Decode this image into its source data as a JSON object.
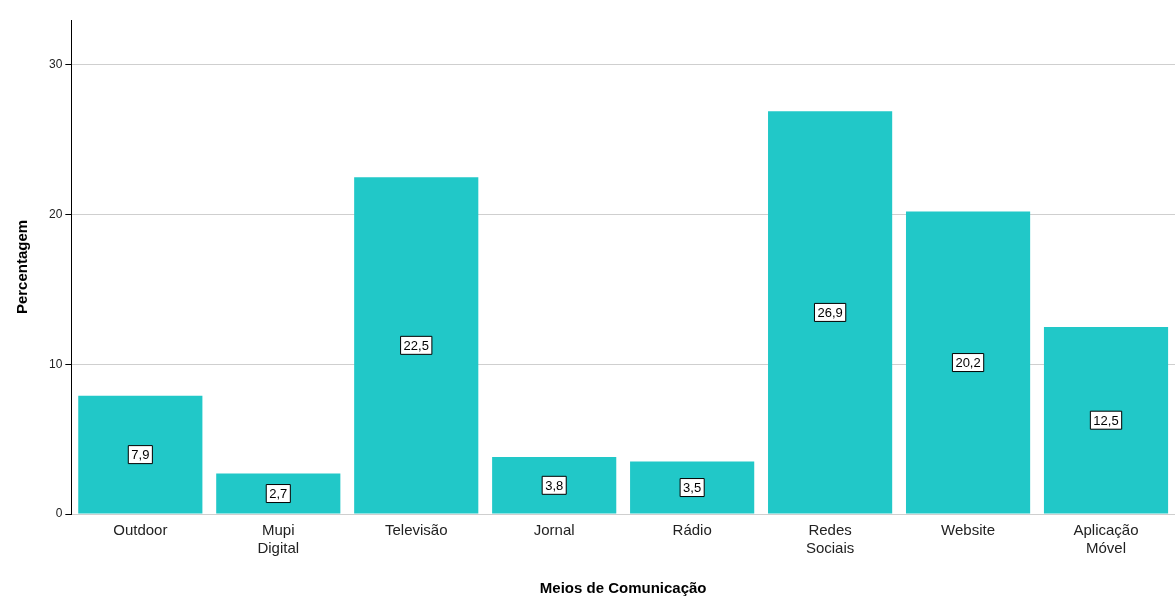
{
  "chart_data": {
    "type": "bar",
    "xlabel": "Meios de Comunicação",
    "ylabel": "Percentagem",
    "categories": [
      "Outdoor",
      "Mupi Digital",
      "Televisão",
      "Jornal",
      "Rádio",
      "Redes Sociais",
      "Website",
      "Aplicação Móvel"
    ],
    "values": [
      7.9,
      2.7,
      22.5,
      3.8,
      3.5,
      26.9,
      20.2,
      12.5
    ],
    "value_labels": [
      "7,9",
      "2,7",
      "22,5",
      "3,8",
      "3,5",
      "26,9",
      "20,2",
      "12,5"
    ],
    "color": "#21c8c8",
    "ylim": [
      0,
      33
    ],
    "yticks": [
      0,
      10,
      20,
      30
    ],
    "grid": "y",
    "legend": false
  }
}
